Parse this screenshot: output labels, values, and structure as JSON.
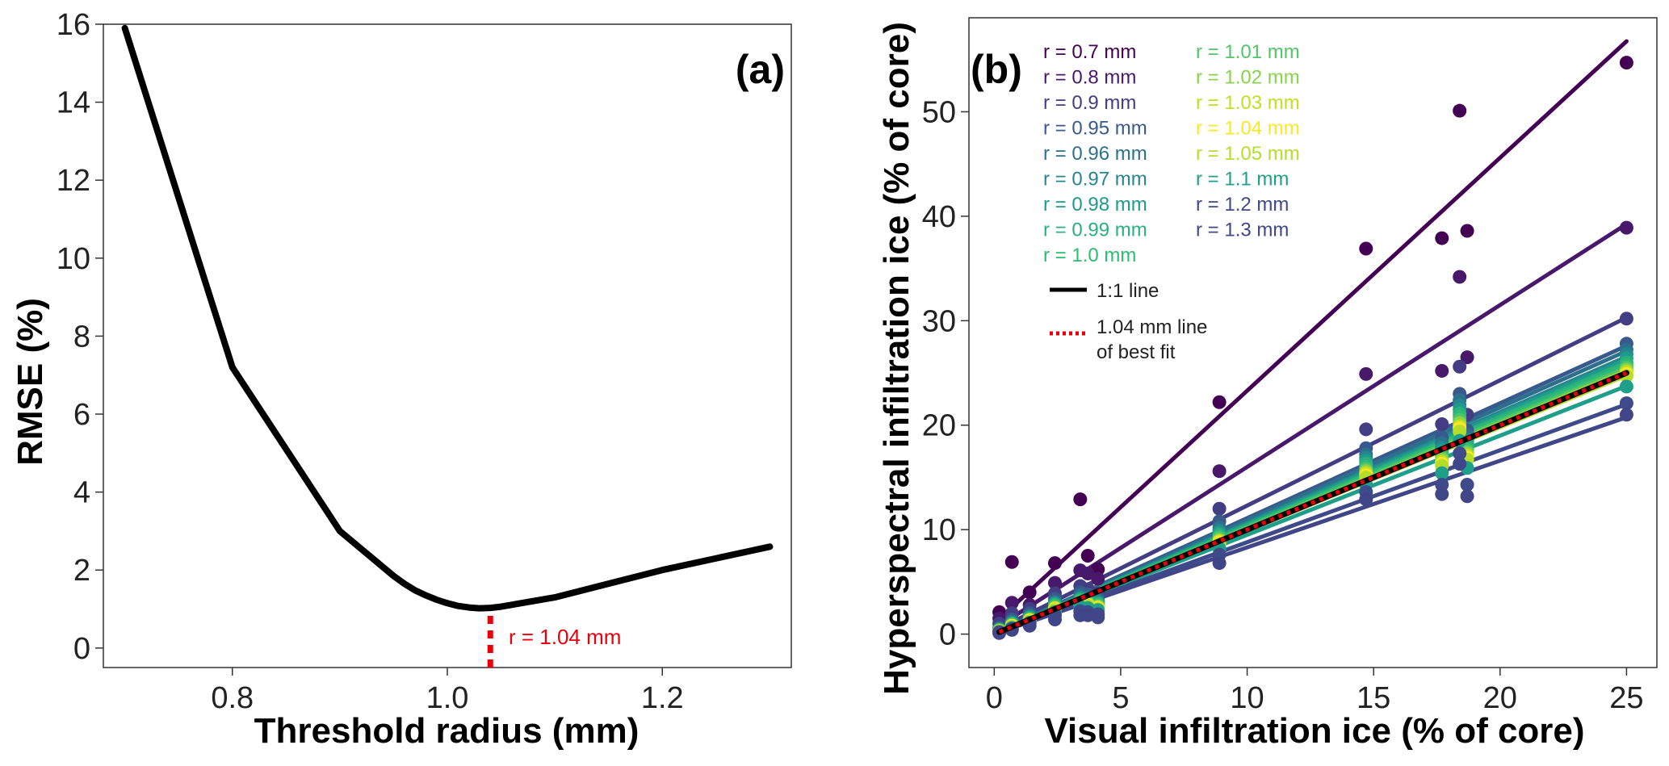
{
  "chart_data": [
    {
      "panel": "(a)",
      "type": "line",
      "xlabel": "Threshold radius (mm)",
      "ylabel": "RMSE (%)",
      "xlim": [
        0.68,
        1.32
      ],
      "ylim": [
        -0.5,
        16
      ],
      "xticks": [
        0.8,
        1.0,
        1.2
      ],
      "xtick_labels": [
        "0.8",
        "1.0",
        "1.2"
      ],
      "yticks": [
        0,
        2,
        4,
        6,
        8,
        10,
        12,
        14,
        16
      ],
      "ytick_labels": [
        "0",
        "2",
        "4",
        "6",
        "8",
        "10",
        "12",
        "14",
        "16"
      ],
      "grid": false,
      "series": [
        {
          "name": "RMSE",
          "color": "#000000",
          "x": [
            0.7,
            0.8,
            0.9,
            0.95,
            0.96,
            0.97,
            0.98,
            0.99,
            1.0,
            1.01,
            1.02,
            1.03,
            1.04,
            1.05,
            1.1,
            1.2,
            1.3
          ],
          "y": [
            15.9,
            7.2,
            3.0,
            1.85,
            1.65,
            1.48,
            1.35,
            1.24,
            1.15,
            1.08,
            1.04,
            1.02,
            1.03,
            1.06,
            1.3,
            2.0,
            2.6
          ]
        }
      ],
      "annotation": {
        "text": "r = 1.04 mm",
        "x": 1.04,
        "color": "#e8000b"
      }
    },
    {
      "panel": "(b)",
      "type": "scatter",
      "xlabel": "Visual infiltration ice (% of core)",
      "ylabel": "Hyperspectral infiltration ice (% of core)",
      "xlim": [
        -1,
        26.2
      ],
      "ylim": [
        -3.2,
        59
      ],
      "xticks": [
        0,
        5,
        10,
        15,
        20,
        25
      ],
      "xtick_labels": [
        "0",
        "5",
        "10",
        "15",
        "20",
        "25"
      ],
      "yticks": [
        0,
        10,
        20,
        30,
        40,
        50
      ],
      "ytick_labels": [
        "0",
        "10",
        "20",
        "30",
        "40",
        "50"
      ],
      "grid": false,
      "visual_x": [
        0.2,
        0.7,
        1.4,
        2.4,
        3.4,
        3.7,
        4.1,
        8.9,
        14.7,
        17.7,
        18.4,
        18.7,
        25.0
      ],
      "series": [
        {
          "name": "r = 0.7 mm",
          "color": "#440154",
          "slope": 2.23,
          "intercept": 1.0,
          "y": [
            2.1,
            6.9,
            4.0,
            6.8,
            12.9,
            7.5,
            6.2,
            22.2,
            36.9,
            37.9,
            50.1,
            38.6,
            54.7
          ]
        },
        {
          "name": "r = 0.8 mm",
          "color": "#48186a",
          "slope": 1.55,
          "intercept": 0.5,
          "y": [
            1.5,
            3.0,
            2.8,
            4.9,
            6.1,
            5.8,
            5.3,
            15.6,
            24.9,
            25.2,
            34.2,
            26.5,
            38.9
          ]
        },
        {
          "name": "r = 0.9 mm",
          "color": "#433d84",
          "slope": 1.2,
          "intercept": 0.3,
          "y": [
            1.0,
            2.0,
            2.4,
            3.9,
            4.6,
            4.3,
            3.9,
            12.0,
            19.6,
            20.1,
            25.6,
            21.0,
            30.2
          ]
        },
        {
          "name": "r = 0.95 mm",
          "color": "#38598c",
          "slope": 1.1,
          "intercept": 0.1,
          "y": [
            0.6,
            1.4,
            2.0,
            3.4,
            4.0,
            3.8,
            3.5,
            10.8,
            17.8,
            18.8,
            23.0,
            19.5,
            27.8
          ]
        },
        {
          "name": "r = 0.96 mm",
          "color": "#2d708e",
          "slope": 1.08,
          "intercept": 0.1,
          "y": [
            0.5,
            1.2,
            1.8,
            3.1,
            3.7,
            3.5,
            3.2,
            10.2,
            17.2,
            18.3,
            22.4,
            19.0,
            27.2
          ]
        },
        {
          "name": "r = 0.97 mm",
          "color": "#25858e",
          "slope": 1.06,
          "intercept": 0.05,
          "y": [
            0.5,
            1.1,
            1.7,
            3.0,
            3.5,
            3.4,
            3.1,
            9.9,
            16.9,
            17.9,
            21.9,
            18.6,
            26.8
          ]
        },
        {
          "name": "r = 0.98 mm",
          "color": "#1e9b8a",
          "slope": 1.05,
          "intercept": 0.05,
          "y": [
            0.4,
            1.0,
            1.6,
            2.9,
            3.4,
            3.3,
            3.0,
            9.7,
            16.6,
            17.6,
            21.5,
            18.3,
            26.4
          ]
        },
        {
          "name": "r = 0.99 mm",
          "color": "#2ab07f",
          "slope": 1.04,
          "intercept": 0.0,
          "y": [
            0.4,
            1.0,
            1.5,
            2.8,
            3.3,
            3.2,
            2.9,
            9.5,
            16.3,
            17.3,
            21.1,
            18.0,
            26.0
          ]
        },
        {
          "name": "r = 1.0 mm",
          "color": "#2dbc73",
          "slope": 1.03,
          "intercept": 0.0,
          "y": [
            0.4,
            0.9,
            1.5,
            2.7,
            3.2,
            3.1,
            2.8,
            9.3,
            16.0,
            17.1,
            20.8,
            17.7,
            25.7
          ]
        },
        {
          "name": "r = 1.01 mm",
          "color": "#52c569",
          "slope": 1.02,
          "intercept": 0.0,
          "y": [
            0.3,
            0.9,
            1.4,
            2.6,
            3.1,
            3.0,
            2.7,
            9.2,
            15.8,
            16.9,
            20.5,
            17.5,
            25.5
          ]
        },
        {
          "name": "r = 1.02 mm",
          "color": "#86d549",
          "slope": 1.01,
          "intercept": 0.0,
          "y": [
            0.3,
            0.8,
            1.4,
            2.5,
            3.0,
            2.9,
            2.6,
            9.0,
            15.6,
            16.7,
            20.2,
            17.3,
            25.3
          ]
        },
        {
          "name": "r = 1.03 mm",
          "color": "#c2df23",
          "slope": 1.005,
          "intercept": 0.0,
          "y": [
            0.3,
            0.8,
            1.3,
            2.5,
            2.9,
            2.8,
            2.6,
            8.9,
            15.4,
            16.5,
            19.9,
            17.1,
            25.1
          ]
        },
        {
          "name": "r = 1.04 mm",
          "color": "#fde725",
          "slope": 1.0,
          "intercept": 0.0,
          "y": [
            0.3,
            0.8,
            1.3,
            2.4,
            2.9,
            2.8,
            2.5,
            8.8,
            15.2,
            16.3,
            19.7,
            16.9,
            24.9
          ]
        },
        {
          "name": "r = 1.05 mm",
          "color": "#b5de2b",
          "slope": 0.99,
          "intercept": 0.0,
          "y": [
            0.3,
            0.7,
            1.2,
            2.3,
            2.8,
            2.7,
            2.4,
            8.6,
            15.0,
            16.1,
            19.4,
            16.7,
            24.7
          ]
        },
        {
          "name": "r = 1.1 mm",
          "color": "#1f9e89",
          "slope": 0.95,
          "intercept": 0.0,
          "y": [
            0.2,
            0.6,
            1.1,
            2.1,
            2.6,
            2.5,
            2.3,
            8.2,
            14.3,
            15.4,
            18.5,
            15.9,
            23.7
          ]
        },
        {
          "name": "r = 1.2 mm",
          "color": "#3e4a89",
          "slope": 0.88,
          "intercept": 0.0,
          "y": [
            0.2,
            0.5,
            1.0,
            1.8,
            2.2,
            2.1,
            1.9,
            7.6,
            13.6,
            14.3,
            17.3,
            14.3,
            22.1
          ]
        },
        {
          "name": "r = 1.3 mm",
          "color": "#404688",
          "slope": 0.83,
          "intercept": 0.0,
          "y": [
            0.1,
            0.4,
            0.8,
            1.4,
            1.8,
            1.8,
            1.6,
            6.8,
            12.9,
            13.4,
            16.3,
            13.2,
            21.0
          ]
        }
      ],
      "reference_lines": [
        {
          "name": "1:1 line",
          "color": "#000000",
          "slope": 1.0,
          "intercept": 0.0
        },
        {
          "name": "1.04 mm line of best fit",
          "color": "#e8000b",
          "slope": 1.0,
          "intercept": 0.0
        }
      ],
      "legend_lines": [
        {
          "label": "1:1 line",
          "color": "#000000",
          "style": "solid"
        },
        {
          "label_lines": [
            "1.04 mm line",
            "of best fit"
          ],
          "color": "#e8000b",
          "style": "dotted"
        }
      ]
    }
  ]
}
